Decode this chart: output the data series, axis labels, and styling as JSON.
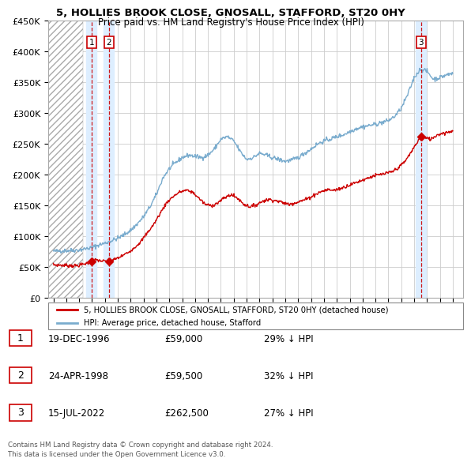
{
  "title": "5, HOLLIES BROOK CLOSE, GNOSALL, STAFFORD, ST20 0HY",
  "subtitle": "Price paid vs. HM Land Registry's House Price Index (HPI)",
  "ylim": [
    0,
    450000
  ],
  "yticks": [
    0,
    50000,
    100000,
    150000,
    200000,
    250000,
    300000,
    350000,
    400000,
    450000
  ],
  "ytick_labels": [
    "£0",
    "£50K",
    "£100K",
    "£150K",
    "£200K",
    "£250K",
    "£300K",
    "£350K",
    "£400K",
    "£450K"
  ],
  "xlim_start": 1993.6,
  "xlim_end": 2025.8,
  "hatch_end": 1996.3,
  "transactions": [
    {
      "label": "1",
      "date": "19-DEC-1996",
      "year": 1996.96,
      "price": 59000,
      "pct": "29% ↓ HPI"
    },
    {
      "label": "2",
      "date": "24-APR-1998",
      "year": 1998.31,
      "price": 59500,
      "pct": "32% ↓ HPI"
    },
    {
      "label": "3",
      "date": "15-JUL-2022",
      "year": 2022.54,
      "price": 262500,
      "pct": "27% ↓ HPI"
    }
  ],
  "legend_entries": [
    "5, HOLLIES BROOK CLOSE, GNOSALL, STAFFORD, ST20 0HY (detached house)",
    "HPI: Average price, detached house, Stafford"
  ],
  "footer": "Contains HM Land Registry data © Crown copyright and database right 2024.\nThis data is licensed under the Open Government Licence v3.0.",
  "red_color": "#cc0000",
  "blue_color": "#7aacce",
  "shade_color": "#ddeeff",
  "grid_color": "#cccccc",
  "bg_color": "#ffffff",
  "table_rows": [
    [
      "1",
      "19-DEC-1996",
      "£59,000",
      "29% ↓ HPI"
    ],
    [
      "2",
      "24-APR-1998",
      "£59,500",
      "32% ↓ HPI"
    ],
    [
      "3",
      "15-JUL-2022",
      "£262,500",
      "27% ↓ HPI"
    ]
  ],
  "hpi_key_points": [
    [
      1994.0,
      76000
    ],
    [
      1994.5,
      76500
    ],
    [
      1995.0,
      77000
    ],
    [
      1995.5,
      77500
    ],
    [
      1996.0,
      78000
    ],
    [
      1996.5,
      80000
    ],
    [
      1997.0,
      82000
    ],
    [
      1997.5,
      86000
    ],
    [
      1998.0,
      89000
    ],
    [
      1998.5,
      93000
    ],
    [
      1999.0,
      97000
    ],
    [
      1999.5,
      103000
    ],
    [
      2000.0,
      110000
    ],
    [
      2000.5,
      120000
    ],
    [
      2001.0,
      132000
    ],
    [
      2001.5,
      148000
    ],
    [
      2002.0,
      168000
    ],
    [
      2002.5,
      195000
    ],
    [
      2003.0,
      210000
    ],
    [
      2003.5,
      220000
    ],
    [
      2004.0,
      228000
    ],
    [
      2004.5,
      232000
    ],
    [
      2005.0,
      230000
    ],
    [
      2005.5,
      228000
    ],
    [
      2006.0,
      232000
    ],
    [
      2006.5,
      242000
    ],
    [
      2007.0,
      258000
    ],
    [
      2007.5,
      262000
    ],
    [
      2008.0,
      255000
    ],
    [
      2008.5,
      238000
    ],
    [
      2009.0,
      225000
    ],
    [
      2009.5,
      228000
    ],
    [
      2010.0,
      235000
    ],
    [
      2010.5,
      232000
    ],
    [
      2011.0,
      228000
    ],
    [
      2011.5,
      225000
    ],
    [
      2012.0,
      222000
    ],
    [
      2012.5,
      224000
    ],
    [
      2013.0,
      228000
    ],
    [
      2013.5,
      235000
    ],
    [
      2014.0,
      242000
    ],
    [
      2014.5,
      250000
    ],
    [
      2015.0,
      255000
    ],
    [
      2015.5,
      258000
    ],
    [
      2016.0,
      262000
    ],
    [
      2016.5,
      265000
    ],
    [
      2017.0,
      270000
    ],
    [
      2017.5,
      275000
    ],
    [
      2018.0,
      278000
    ],
    [
      2018.5,
      280000
    ],
    [
      2019.0,
      282000
    ],
    [
      2019.5,
      285000
    ],
    [
      2020.0,
      288000
    ],
    [
      2020.5,
      295000
    ],
    [
      2021.0,
      308000
    ],
    [
      2021.5,
      330000
    ],
    [
      2022.0,
      358000
    ],
    [
      2022.5,
      372000
    ],
    [
      2023.0,
      368000
    ],
    [
      2023.5,
      355000
    ],
    [
      2024.0,
      358000
    ],
    [
      2024.5,
      362000
    ],
    [
      2025.0,
      365000
    ]
  ],
  "red_key_points": [
    [
      1994.0,
      54000
    ],
    [
      1994.5,
      53500
    ],
    [
      1995.0,
      53000
    ],
    [
      1995.5,
      52500
    ],
    [
      1996.0,
      53000
    ],
    [
      1996.5,
      56000
    ],
    [
      1996.96,
      59000
    ],
    [
      1997.3,
      62000
    ],
    [
      1997.8,
      60000
    ],
    [
      1998.31,
      59500
    ],
    [
      1998.8,
      63000
    ],
    [
      1999.3,
      68000
    ],
    [
      1999.8,
      74000
    ],
    [
      2000.3,
      82000
    ],
    [
      2000.8,
      92000
    ],
    [
      2001.3,
      106000
    ],
    [
      2001.8,
      120000
    ],
    [
      2002.3,
      138000
    ],
    [
      2002.8,
      155000
    ],
    [
      2003.3,
      165000
    ],
    [
      2003.8,
      172000
    ],
    [
      2004.3,
      175000
    ],
    [
      2004.8,
      172000
    ],
    [
      2005.3,
      162000
    ],
    [
      2005.8,
      152000
    ],
    [
      2006.3,
      150000
    ],
    [
      2006.8,
      155000
    ],
    [
      2007.3,
      163000
    ],
    [
      2007.8,
      168000
    ],
    [
      2008.3,
      162000
    ],
    [
      2008.8,
      152000
    ],
    [
      2009.3,
      148000
    ],
    [
      2009.8,
      152000
    ],
    [
      2010.3,
      158000
    ],
    [
      2010.8,
      160000
    ],
    [
      2011.3,
      158000
    ],
    [
      2011.8,
      155000
    ],
    [
      2012.3,
      152000
    ],
    [
      2012.8,
      155000
    ],
    [
      2013.3,
      158000
    ],
    [
      2013.8,
      162000
    ],
    [
      2014.3,
      168000
    ],
    [
      2014.8,
      173000
    ],
    [
      2015.3,
      176000
    ],
    [
      2015.8,
      175000
    ],
    [
      2016.3,
      178000
    ],
    [
      2016.8,
      182000
    ],
    [
      2017.3,
      186000
    ],
    [
      2017.8,
      190000
    ],
    [
      2018.3,
      194000
    ],
    [
      2018.8,
      198000
    ],
    [
      2019.3,
      200000
    ],
    [
      2019.8,
      202000
    ],
    [
      2020.3,
      205000
    ],
    [
      2020.8,
      212000
    ],
    [
      2021.3,
      222000
    ],
    [
      2021.8,
      238000
    ],
    [
      2022.3,
      255000
    ],
    [
      2022.54,
      262500
    ],
    [
      2022.8,
      260000
    ],
    [
      2023.3,
      258000
    ],
    [
      2023.8,
      265000
    ],
    [
      2024.3,
      268000
    ],
    [
      2024.8,
      270000
    ],
    [
      2025.0,
      272000
    ]
  ]
}
